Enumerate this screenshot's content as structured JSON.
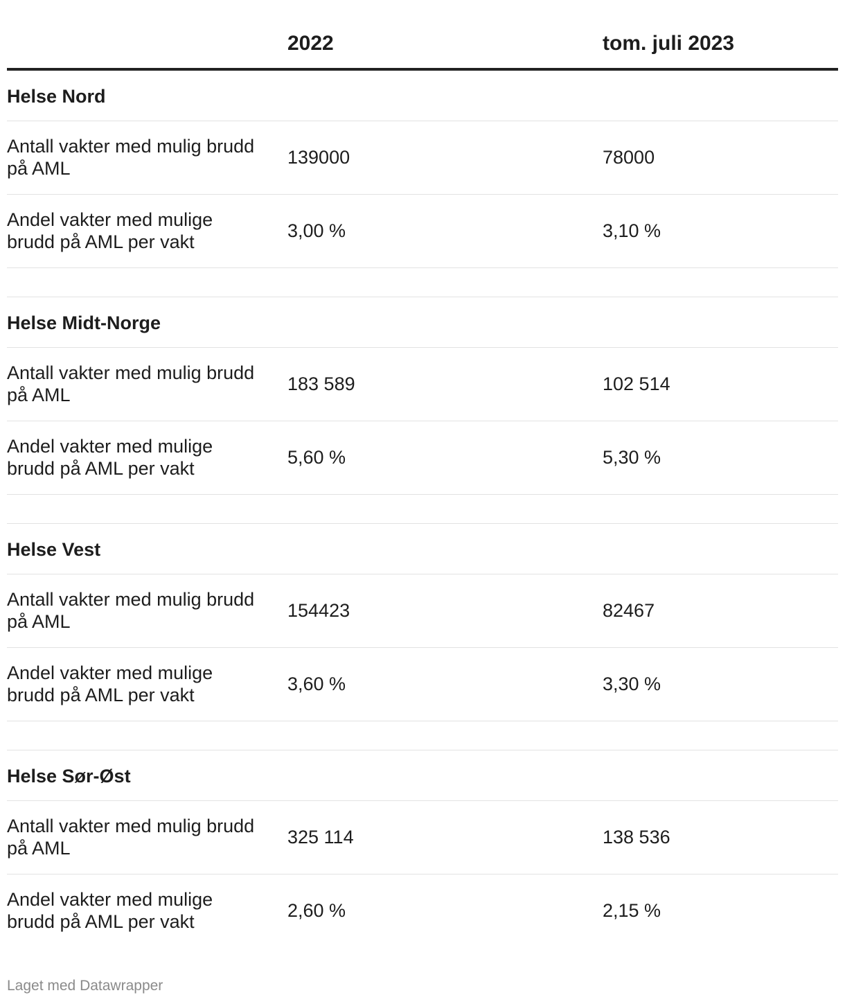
{
  "chart_data": {
    "type": "table",
    "columns": [
      "",
      "2022",
      "tom. juli 2023"
    ],
    "groups": [
      {
        "title": "Helse Nord",
        "rows": [
          {
            "label": "Antall vakter med mulig brudd på AML",
            "v2022": "139000",
            "v2023": "78000"
          },
          {
            "label": "Andel vakter med mulige brudd på AML per vakt",
            "v2022": "3,00 %",
            "v2023": "3,10 %"
          }
        ]
      },
      {
        "title": "Helse Midt-Norge",
        "rows": [
          {
            "label": "Antall vakter med mulig brudd på AML",
            "v2022": "183 589",
            "v2023": "102 514"
          },
          {
            "label": "Andel vakter med mulige brudd på AML per vakt",
            "v2022": "5,60 %",
            "v2023": "5,30 %"
          }
        ]
      },
      {
        "title": "Helse Vest",
        "rows": [
          {
            "label": "Antall vakter med mulig brudd på AML",
            "v2022": "154423",
            "v2023": "82467"
          },
          {
            "label": "Andel vakter med mulige brudd på AML per vakt",
            "v2022": "3,60 %",
            "v2023": "3,30 %"
          }
        ]
      },
      {
        "title": "Helse Sør-Øst",
        "rows": [
          {
            "label": "Antall vakter med mulig brudd på AML",
            "v2022": "325 114",
            "v2023": "138 536"
          },
          {
            "label": "Andel vakter med mulige brudd på AML per vakt",
            "v2022": "2,60 %",
            "v2023": "2,15 %"
          }
        ]
      }
    ]
  },
  "footer": {
    "credit": "Laget med Datawrapper"
  }
}
